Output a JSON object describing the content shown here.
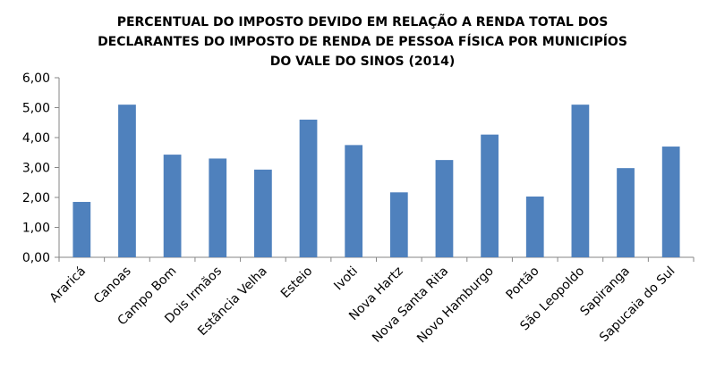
{
  "chart_data": {
    "type": "bar",
    "title_lines": [
      "PERCENTUAL DO IMPOSTO DEVIDO EM RELAÇÃO  A RENDA TOTAL DOS",
      "DECLARANTES  DO IMPOSTO DE RENDA DE PESSOA  FÍSICA POR MUNICIPÍOS",
      "DO VALE DO SINOS (2014)"
    ],
    "categories": [
      "Araricá",
      "Canoas",
      "Campo Bom",
      "Dois Irmãos",
      "Estância Velha",
      "Esteio",
      "Ivoti",
      "Nova Hartz",
      "Nova Santa Rita",
      "Novo Hamburgo",
      "Portão",
      "São Leopoldo",
      "Sapiranga",
      "Sapucaia do Sul"
    ],
    "values": [
      1.85,
      5.1,
      3.43,
      3.3,
      2.93,
      4.6,
      3.75,
      2.17,
      3.25,
      4.1,
      2.03,
      5.1,
      2.98,
      3.7
    ],
    "ylim": [
      0,
      6
    ],
    "yticks": [
      "0,00",
      "1,00",
      "2,00",
      "3,00",
      "4,00",
      "5,00",
      "6,00"
    ],
    "bar_color": "#4f81bd",
    "grid": false,
    "legend": "none"
  }
}
